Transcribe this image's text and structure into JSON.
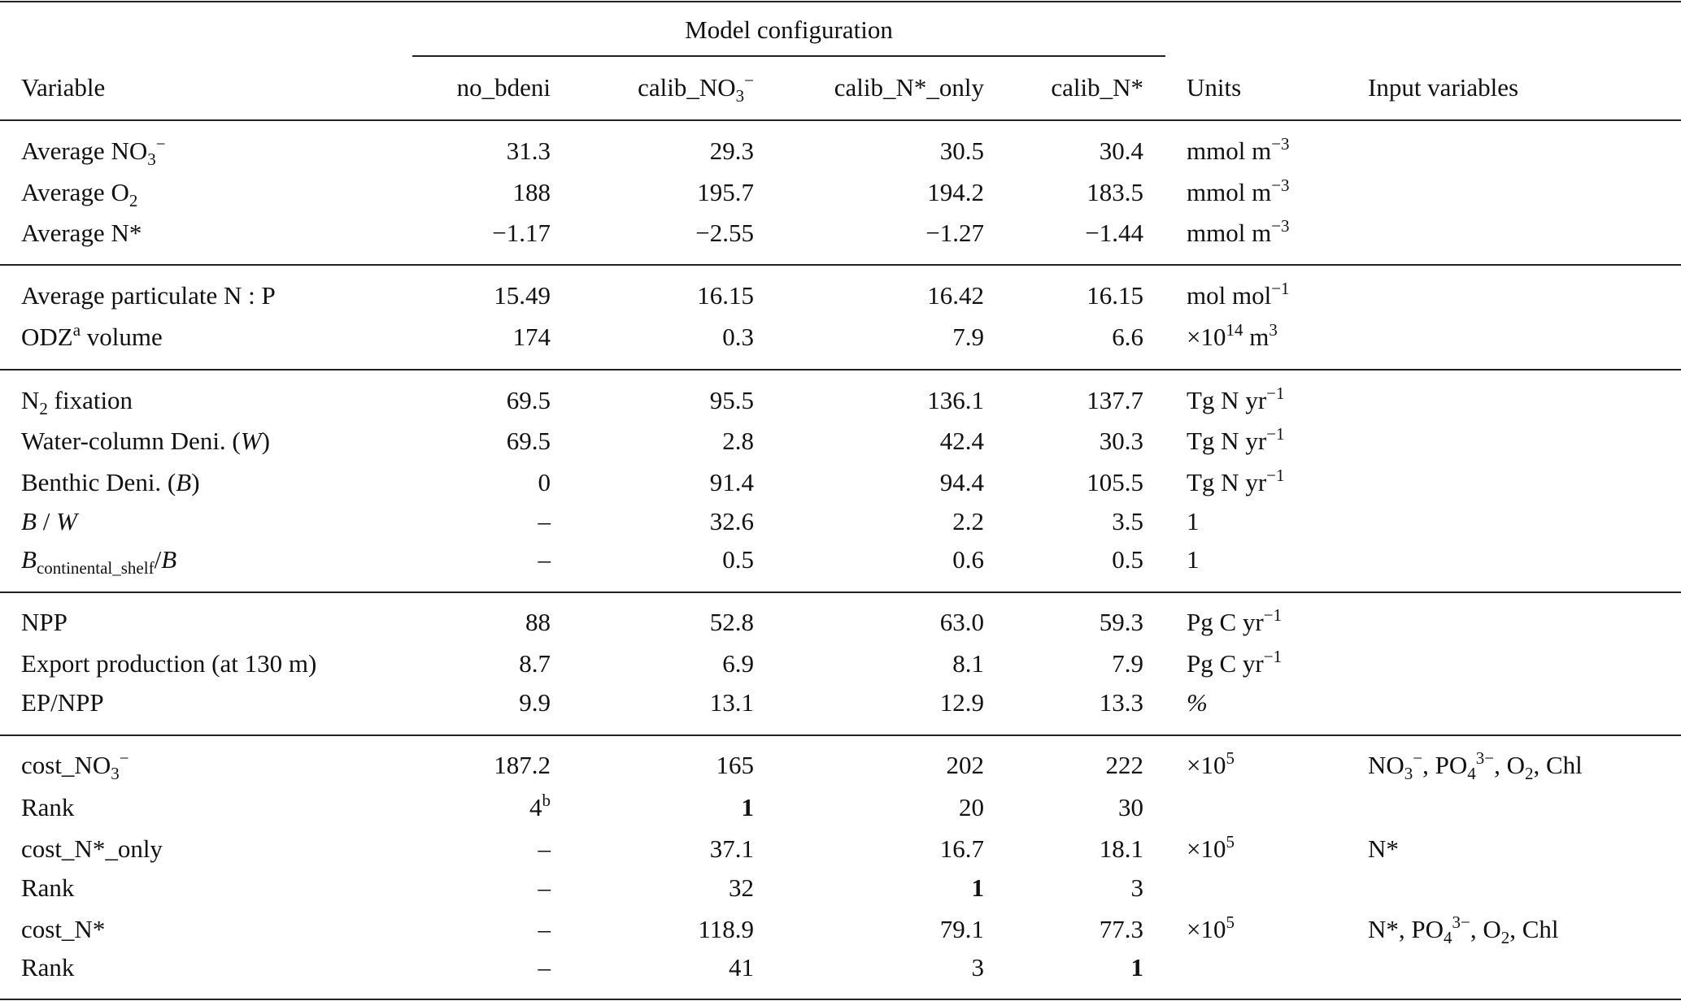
{
  "table": {
    "group_header": "Model configuration",
    "columns": [
      [
        {
          "t": "Variable"
        }
      ],
      [
        {
          "t": "no_bdeni"
        }
      ],
      [
        {
          "t": "calib_NO"
        },
        {
          "sub": "3"
        },
        {
          "sup": "−"
        }
      ],
      [
        {
          "t": "calib_N*_only"
        }
      ],
      [
        {
          "t": "calib_N*"
        }
      ],
      [
        {
          "t": "Units"
        }
      ],
      [
        {
          "t": "Input variables"
        }
      ]
    ],
    "groups": [
      [
        {
          "label": [
            {
              "t": "Average NO"
            },
            {
              "sub": "3"
            },
            {
              "sup": "−"
            }
          ],
          "values": [
            [
              {
                "t": "31.3"
              }
            ],
            [
              {
                "t": "29.3"
              }
            ],
            [
              {
                "t": "30.5"
              }
            ],
            [
              {
                "t": "30.4"
              }
            ]
          ],
          "units": [
            {
              "t": "mmol m"
            },
            {
              "sup": "−3"
            }
          ],
          "inputs": []
        },
        {
          "label": [
            {
              "t": "Average O"
            },
            {
              "sub": "2"
            }
          ],
          "values": [
            [
              {
                "t": "188"
              }
            ],
            [
              {
                "t": "195.7"
              }
            ],
            [
              {
                "t": "194.2"
              }
            ],
            [
              {
                "t": "183.5"
              }
            ]
          ],
          "units": [
            {
              "t": "mmol m"
            },
            {
              "sup": "−3"
            }
          ],
          "inputs": []
        },
        {
          "label": [
            {
              "t": "Average N*"
            }
          ],
          "values": [
            [
              {
                "t": "−1.17"
              }
            ],
            [
              {
                "t": "−2.55"
              }
            ],
            [
              {
                "t": "−1.27"
              }
            ],
            [
              {
                "t": "−1.44"
              }
            ]
          ],
          "units": [
            {
              "t": "mmol m"
            },
            {
              "sup": "−3"
            }
          ],
          "inputs": []
        }
      ],
      [
        {
          "label": [
            {
              "t": "Average particulate N : P"
            }
          ],
          "values": [
            [
              {
                "t": "15.49"
              }
            ],
            [
              {
                "t": "16.15"
              }
            ],
            [
              {
                "t": "16.42"
              }
            ],
            [
              {
                "t": "16.15"
              }
            ]
          ],
          "units": [
            {
              "t": "mol mol"
            },
            {
              "sup": "−1"
            }
          ],
          "inputs": []
        },
        {
          "label": [
            {
              "t": "ODZ"
            },
            {
              "sup": "a"
            },
            {
              "t": " volume"
            }
          ],
          "values": [
            [
              {
                "t": "174"
              }
            ],
            [
              {
                "t": "0.3"
              }
            ],
            [
              {
                "t": "7.9"
              }
            ],
            [
              {
                "t": "6.6"
              }
            ]
          ],
          "units": [
            {
              "t": "×10"
            },
            {
              "sup": "14"
            },
            {
              "t": " m"
            },
            {
              "sup": "3"
            }
          ],
          "inputs": []
        }
      ],
      [
        {
          "label": [
            {
              "t": "N"
            },
            {
              "sub": "2"
            },
            {
              "t": " fixation"
            }
          ],
          "values": [
            [
              {
                "t": "69.5"
              }
            ],
            [
              {
                "t": "95.5"
              }
            ],
            [
              {
                "t": "136.1"
              }
            ],
            [
              {
                "t": "137.7"
              }
            ]
          ],
          "units": [
            {
              "t": "Tg N yr"
            },
            {
              "sup": "−1"
            }
          ],
          "inputs": []
        },
        {
          "label": [
            {
              "t": "Water-column Deni. ("
            },
            {
              "i": "W"
            },
            {
              "t": ")"
            }
          ],
          "values": [
            [
              {
                "t": "69.5"
              }
            ],
            [
              {
                "t": "2.8"
              }
            ],
            [
              {
                "t": "42.4"
              }
            ],
            [
              {
                "t": "30.3"
              }
            ]
          ],
          "units": [
            {
              "t": "Tg N yr"
            },
            {
              "sup": "−1"
            }
          ],
          "inputs": []
        },
        {
          "label": [
            {
              "t": "Benthic Deni. ("
            },
            {
              "i": "B"
            },
            {
              "t": ")"
            }
          ],
          "values": [
            [
              {
                "t": "0"
              }
            ],
            [
              {
                "t": "91.4"
              }
            ],
            [
              {
                "t": "94.4"
              }
            ],
            [
              {
                "t": "105.5"
              }
            ]
          ],
          "units": [
            {
              "t": "Tg N yr"
            },
            {
              "sup": "−1"
            }
          ],
          "inputs": []
        },
        {
          "label": [
            {
              "i": "B"
            },
            {
              "t": " / "
            },
            {
              "i": "W"
            }
          ],
          "values": [
            [
              {
                "t": "–"
              }
            ],
            [
              {
                "t": "32.6"
              }
            ],
            [
              {
                "t": "2.2"
              }
            ],
            [
              {
                "t": "3.5"
              }
            ]
          ],
          "units": [
            {
              "t": "1"
            }
          ],
          "inputs": []
        },
        {
          "label": [
            {
              "i": "B"
            },
            {
              "sub": "continental_shelf"
            },
            {
              "t": "/"
            },
            {
              "i": "B"
            }
          ],
          "values": [
            [
              {
                "t": "–"
              }
            ],
            [
              {
                "t": "0.5"
              }
            ],
            [
              {
                "t": "0.6"
              }
            ],
            [
              {
                "t": "0.5"
              }
            ]
          ],
          "units": [
            {
              "t": "1"
            }
          ],
          "inputs": []
        }
      ],
      [
        {
          "label": [
            {
              "t": "NPP"
            }
          ],
          "values": [
            [
              {
                "t": "88"
              }
            ],
            [
              {
                "t": "52.8"
              }
            ],
            [
              {
                "t": "63.0"
              }
            ],
            [
              {
                "t": "59.3"
              }
            ]
          ],
          "units": [
            {
              "t": "Pg C yr"
            },
            {
              "sup": "−1"
            }
          ],
          "inputs": []
        },
        {
          "label": [
            {
              "t": "Export production (at 130 m)"
            }
          ],
          "values": [
            [
              {
                "t": "8.7"
              }
            ],
            [
              {
                "t": "6.9"
              }
            ],
            [
              {
                "t": "8.1"
              }
            ],
            [
              {
                "t": "7.9"
              }
            ]
          ],
          "units": [
            {
              "t": "Pg C yr"
            },
            {
              "sup": "−1"
            }
          ],
          "inputs": []
        },
        {
          "label": [
            {
              "t": "EP/NPP"
            }
          ],
          "values": [
            [
              {
                "t": "9.9"
              }
            ],
            [
              {
                "t": "13.1"
              }
            ],
            [
              {
                "t": "12.9"
              }
            ],
            [
              {
                "t": "13.3"
              }
            ]
          ],
          "units": [
            {
              "i": "%"
            }
          ],
          "inputs": []
        }
      ],
      [
        {
          "label": [
            {
              "t": "cost_NO"
            },
            {
              "sub": "3"
            },
            {
              "sup": "−"
            }
          ],
          "values": [
            [
              {
                "t": "187.2"
              }
            ],
            [
              {
                "t": "165"
              }
            ],
            [
              {
                "t": "202"
              }
            ],
            [
              {
                "t": "222"
              }
            ]
          ],
          "units": [
            {
              "t": "×10"
            },
            {
              "sup": "5"
            }
          ],
          "inputs": [
            {
              "t": "NO"
            },
            {
              "sub": "3"
            },
            {
              "sup": "−"
            },
            {
              "t": ", PO"
            },
            {
              "sub": "4"
            },
            {
              "sup": "3−"
            },
            {
              "t": ", O"
            },
            {
              "sub": "2"
            },
            {
              "t": ", Chl"
            }
          ]
        },
        {
          "label": [
            {
              "t": "Rank"
            }
          ],
          "values": [
            [
              {
                "t": "4"
              },
              {
                "sup": "b"
              }
            ],
            [
              {
                "b": "1"
              }
            ],
            [
              {
                "t": "20"
              }
            ],
            [
              {
                "t": "30"
              }
            ]
          ],
          "units": [],
          "inputs": []
        },
        {
          "label": [
            {
              "t": "cost_N*_only"
            }
          ],
          "values": [
            [
              {
                "t": "–"
              }
            ],
            [
              {
                "t": "37.1"
              }
            ],
            [
              {
                "t": "16.7"
              }
            ],
            [
              {
                "t": "18.1"
              }
            ]
          ],
          "units": [
            {
              "t": "×10"
            },
            {
              "sup": "5"
            }
          ],
          "inputs": [
            {
              "t": "N*"
            }
          ]
        },
        {
          "label": [
            {
              "t": "Rank"
            }
          ],
          "values": [
            [
              {
                "t": "–"
              }
            ],
            [
              {
                "t": "32"
              }
            ],
            [
              {
                "b": "1"
              }
            ],
            [
              {
                "t": "3"
              }
            ]
          ],
          "units": [],
          "inputs": []
        },
        {
          "label": [
            {
              "t": "cost_N*"
            }
          ],
          "values": [
            [
              {
                "t": "–"
              }
            ],
            [
              {
                "t": "118.9"
              }
            ],
            [
              {
                "t": "79.1"
              }
            ],
            [
              {
                "t": "77.3"
              }
            ]
          ],
          "units": [
            {
              "t": "×10"
            },
            {
              "sup": "5"
            }
          ],
          "inputs": [
            {
              "t": "N*, PO"
            },
            {
              "sub": "4"
            },
            {
              "sup": "3−"
            },
            {
              "t": ", O"
            },
            {
              "sub": "2"
            },
            {
              "t": ", Chl"
            }
          ]
        },
        {
          "label": [
            {
              "t": "Rank"
            }
          ],
          "values": [
            [
              {
                "t": "–"
              }
            ],
            [
              {
                "t": "41"
              }
            ],
            [
              {
                "t": "3"
              }
            ],
            [
              {
                "b": "1"
              }
            ]
          ],
          "units": [],
          "inputs": []
        }
      ]
    ]
  }
}
